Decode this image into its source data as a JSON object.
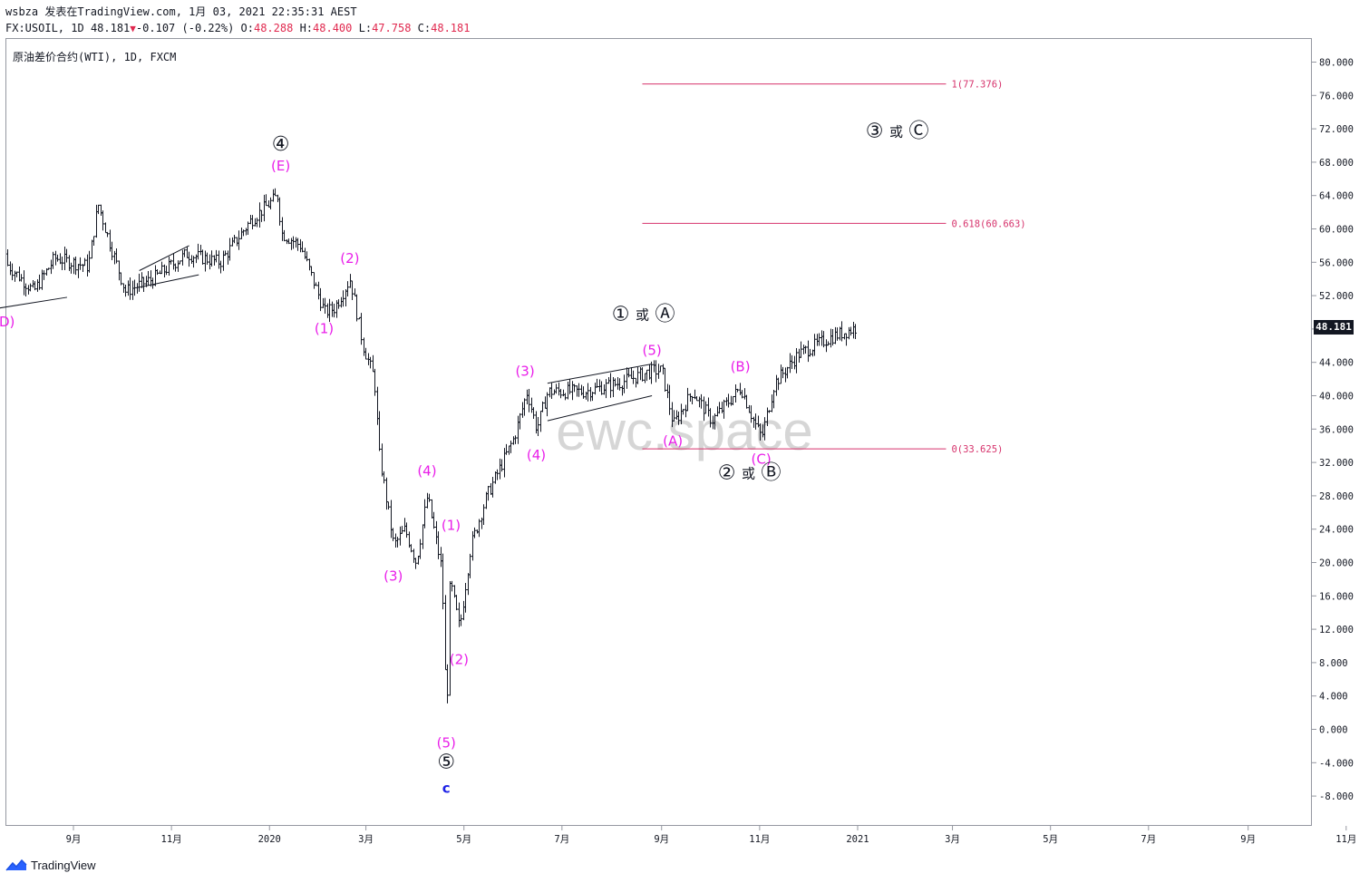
{
  "header": {
    "line1": "wsbza 发表在TradingView.com, 1月 03, 2021 22:35:31 AEST",
    "symbol": "FX:USOIL, 1D",
    "last": "48.181",
    "change": "-0.107 (-0.22%)",
    "o_label": "O:",
    "o_val": "48.288",
    "h_label": "H:",
    "h_val": "48.400",
    "l_label": "L:",
    "l_val": "47.758",
    "c_label": "C:",
    "c_val": "48.181"
  },
  "symbol_label": "原油差价合约(WTI), 1D, FXCM",
  "watermark": "ewc.space",
  "branding": "TradingView",
  "colors": {
    "wave": "#e91ee9",
    "fib": "#d6336c",
    "bar": "#131722",
    "wave_c": "#1e22e6"
  },
  "chart_data": {
    "type": "ohlc",
    "price_axis": {
      "min": -10,
      "max": 82,
      "ticks": [
        "80.000",
        "76.000",
        "72.000",
        "68.000",
        "64.000",
        "60.000",
        "56.000",
        "52.000",
        "48.000",
        "44.000",
        "40.000",
        "36.000",
        "32.000",
        "28.000",
        "24.000",
        "20.000",
        "16.000",
        "12.000",
        "8.000",
        "4.000",
        "0.000",
        "-4.000",
        "-8.000"
      ]
    },
    "time_axis": [
      "9月",
      "11月",
      "2020",
      "3月",
      "5月",
      "7月",
      "9月",
      "11月",
      "2021",
      "3月",
      "5月",
      "7月",
      "9月",
      "11月"
    ],
    "last_price": "48.181",
    "close_path": [
      [
        "2019-07-15",
        57.0
      ],
      [
        "2019-08-07",
        52.5
      ],
      [
        "2019-08-20",
        56.5
      ],
      [
        "2019-09-10",
        55.5
      ],
      [
        "2019-09-16",
        63.0
      ],
      [
        "2019-09-23",
        58.5
      ],
      [
        "2019-10-03",
        52.5
      ],
      [
        "2019-10-20",
        54.0
      ],
      [
        "2019-11-10",
        57.0
      ],
      [
        "2019-12-01",
        56.0
      ],
      [
        "2019-12-20",
        61.0
      ],
      [
        "2020-01-06",
        64.0
      ],
      [
        "2020-01-08",
        59.5
      ],
      [
        "2020-01-20",
        58.0
      ],
      [
        "2020-02-04",
        50.0
      ],
      [
        "2020-02-10",
        50.5
      ],
      [
        "2020-02-20",
        54.0
      ],
      [
        "2020-02-28",
        46.0
      ],
      [
        "2020-03-06",
        42.0
      ],
      [
        "2020-03-09",
        33.0
      ],
      [
        "2020-03-18",
        22.0
      ],
      [
        "2020-03-25",
        24.0
      ],
      [
        "2020-04-01",
        20.0
      ],
      [
        "2020-04-08",
        28.0
      ],
      [
        "2020-04-13",
        23.0
      ],
      [
        "2020-04-17",
        19.0
      ],
      [
        "2020-04-20",
        1.0
      ],
      [
        "2020-04-22",
        18.0
      ],
      [
        "2020-04-28",
        12.0
      ],
      [
        "2020-05-05",
        22.0
      ],
      [
        "2020-05-15",
        28.0
      ],
      [
        "2020-06-01",
        35.0
      ],
      [
        "2020-06-09",
        40.5
      ],
      [
        "2020-06-15",
        36.0
      ],
      [
        "2020-06-22",
        40.5
      ],
      [
        "2020-07-15",
        40.5
      ],
      [
        "2020-08-05",
        41.5
      ],
      [
        "2020-08-26",
        43.0
      ],
      [
        "2020-09-01",
        43.0
      ],
      [
        "2020-09-08",
        36.5
      ],
      [
        "2020-09-20",
        40.5
      ],
      [
        "2020-10-02",
        37.0
      ],
      [
        "2020-10-20",
        41.0
      ],
      [
        "2020-10-28",
        37.0
      ],
      [
        "2020-11-02",
        35.0
      ],
      [
        "2020-11-10",
        41.5
      ],
      [
        "2020-11-25",
        45.0
      ],
      [
        "2020-12-15",
        47.0
      ],
      [
        "2020-12-31",
        48.18
      ]
    ],
    "waves": [
      {
        "label": "(D)",
        "date": "2019-07-20",
        "price": 50.5,
        "pos": "below"
      },
      {
        "label": "④",
        "date": "2020-01-08",
        "price": 65.6,
        "pos": "above2"
      },
      {
        "label": "(E)",
        "date": "2020-01-08",
        "price": 65.6,
        "pos": "above"
      },
      {
        "label": "(1)",
        "date": "2020-02-04",
        "price": 49.7,
        "pos": "below"
      },
      {
        "label": "(2)",
        "date": "2020-02-20",
        "price": 54.5,
        "pos": "above"
      },
      {
        "label": "(3)",
        "date": "2020-03-18",
        "price": 20.0,
        "pos": "below"
      },
      {
        "label": "(4)",
        "date": "2020-04-08",
        "price": 29.0,
        "pos": "above"
      },
      {
        "label": "(5)",
        "date": "2020-04-20",
        "price": 0.0,
        "pos": "below"
      },
      {
        "label": "⑤",
        "date": "2020-04-20",
        "price": 0.0,
        "pos": "below2"
      },
      {
        "label": "c",
        "date": "2020-04-20",
        "price": 0.0,
        "pos": "below3",
        "blue": true
      },
      {
        "label": "(1)",
        "date": "2020-04-23",
        "price": 22.5,
        "pos": "above"
      },
      {
        "label": "(2)",
        "date": "2020-04-28",
        "price": 10.0,
        "pos": "below"
      },
      {
        "label": "(3)",
        "date": "2020-06-08",
        "price": 41.0,
        "pos": "above"
      },
      {
        "label": "(4)",
        "date": "2020-06-15",
        "price": 34.5,
        "pos": "below"
      },
      {
        "label": "(5)",
        "date": "2020-08-26",
        "price": 43.5,
        "pos": "above"
      },
      {
        "label": "(A)",
        "date": "2020-09-08",
        "price": 36.2,
        "pos": "below"
      },
      {
        "label": "(B)",
        "date": "2020-10-20",
        "price": 41.5,
        "pos": "above"
      },
      {
        "label": "(C)",
        "date": "2020-11-02",
        "price": 34.0,
        "pos": "below"
      }
    ],
    "alt_labels": [
      {
        "a": "①",
        "mid": "或",
        "b": "Ⓐ",
        "date": "2020-08-20",
        "price": 49.0
      },
      {
        "a": "②",
        "mid": "或",
        "b": "Ⓑ",
        "date": "2020-10-25",
        "price": 30.0
      },
      {
        "a": "③",
        "mid": "或",
        "b": "Ⓒ",
        "date": "2021-01-25",
        "price": 71.0
      }
    ],
    "fib_levels": [
      {
        "label": "1(77.376)",
        "price": 77.376
      },
      {
        "label": "0.618(60.663)",
        "price": 60.663
      },
      {
        "label": "0(33.625)",
        "price": 33.625
      }
    ],
    "fib_span": [
      "2020-08-20",
      "2021-02-25"
    ],
    "trendlines": [
      {
        "from": [
          "2019-07-10",
          50.3
        ],
        "to": [
          "2019-08-28",
          51.8
        ]
      },
      {
        "from": [
          "2019-10-12",
          55.0
        ],
        "to": [
          "2019-11-12",
          58.0
        ]
      },
      {
        "from": [
          "2019-10-12",
          53.0
        ],
        "to": [
          "2019-11-18",
          54.5
        ]
      },
      {
        "from": [
          "2020-06-22",
          41.5
        ],
        "to": [
          "2020-08-26",
          43.8
        ]
      },
      {
        "from": [
          "2020-06-22",
          37.0
        ],
        "to": [
          "2020-08-26",
          40.0
        ]
      }
    ]
  }
}
